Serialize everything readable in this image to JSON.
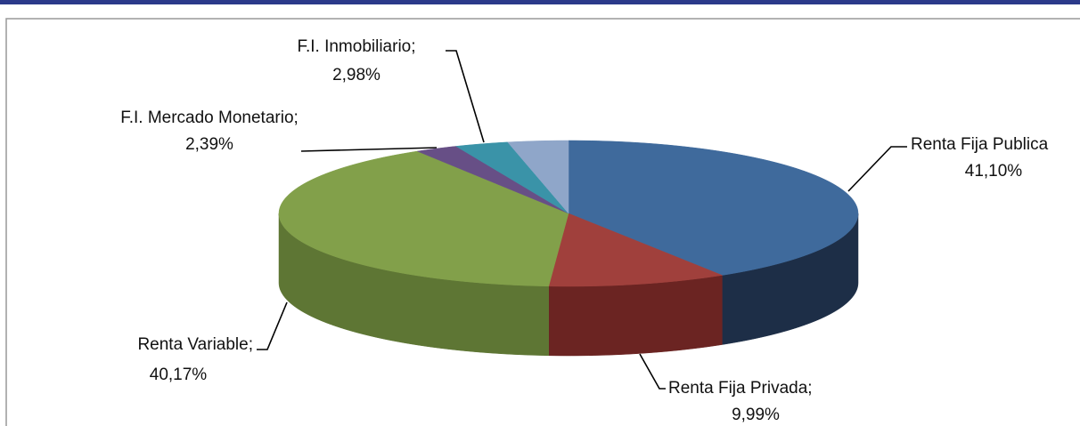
{
  "chart_data": {
    "type": "pie3d",
    "categories": [
      "Renta Fija Publica",
      "Renta Fija Privada;",
      "Renta Variable;",
      "F.I. Mercado Monetario;",
      "F.I. Inmobiliario;",
      null
    ],
    "values": [
      41.1,
      9.99,
      40.17,
      2.39,
      2.98,
      3.37
    ],
    "value_labels": [
      "41,10%",
      "9,99%",
      "40,17%",
      "2,39%",
      "2,98%",
      null
    ],
    "colors": [
      "#3f6a9c",
      "#a0403c",
      "#82a04a",
      "#674f86",
      "#3a93a8",
      "#8fa6c9"
    ],
    "side_colors": [
      "#1d2e47",
      "#6b2422",
      "#5e7634",
      "#46355d",
      "#266474",
      "#63799a"
    ]
  }
}
